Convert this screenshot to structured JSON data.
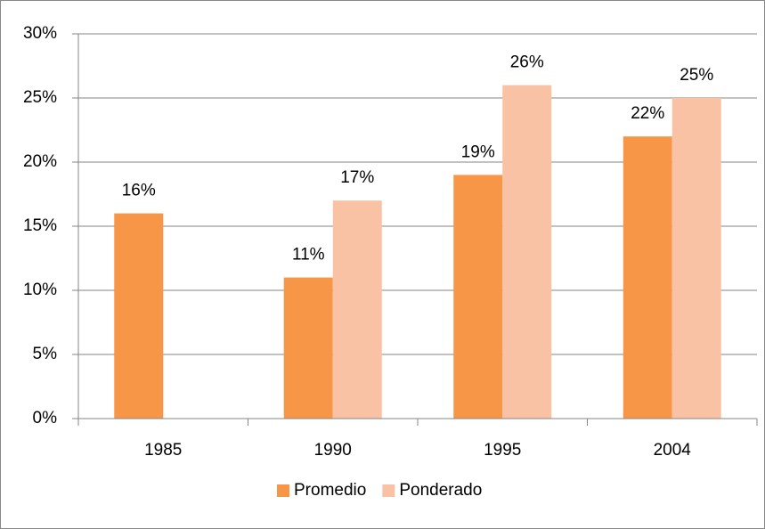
{
  "chart_data": {
    "type": "bar",
    "categories": [
      "1985",
      "1990",
      "1995",
      "2004"
    ],
    "series": [
      {
        "name": "Promedio",
        "color": "#f79646",
        "values": [
          16,
          11,
          19,
          22
        ],
        "value_labels": [
          "16%",
          "11%",
          "19%",
          "22%"
        ]
      },
      {
        "name": "Ponderado",
        "color": "#fac2a4",
        "values": [
          null,
          17,
          26,
          25
        ],
        "value_labels": [
          null,
          "17%",
          "26%",
          "25%"
        ]
      }
    ],
    "ylim": [
      0,
      30
    ],
    "yticks": [
      {
        "value": 0,
        "label": "0%"
      },
      {
        "value": 5,
        "label": "5%"
      },
      {
        "value": 10,
        "label": "10%"
      },
      {
        "value": 15,
        "label": "15%"
      },
      {
        "value": 20,
        "label": "20%"
      },
      {
        "value": 25,
        "label": "25%"
      },
      {
        "value": 30,
        "label": "30%"
      }
    ],
    "grid": true,
    "legend": "bottom"
  }
}
